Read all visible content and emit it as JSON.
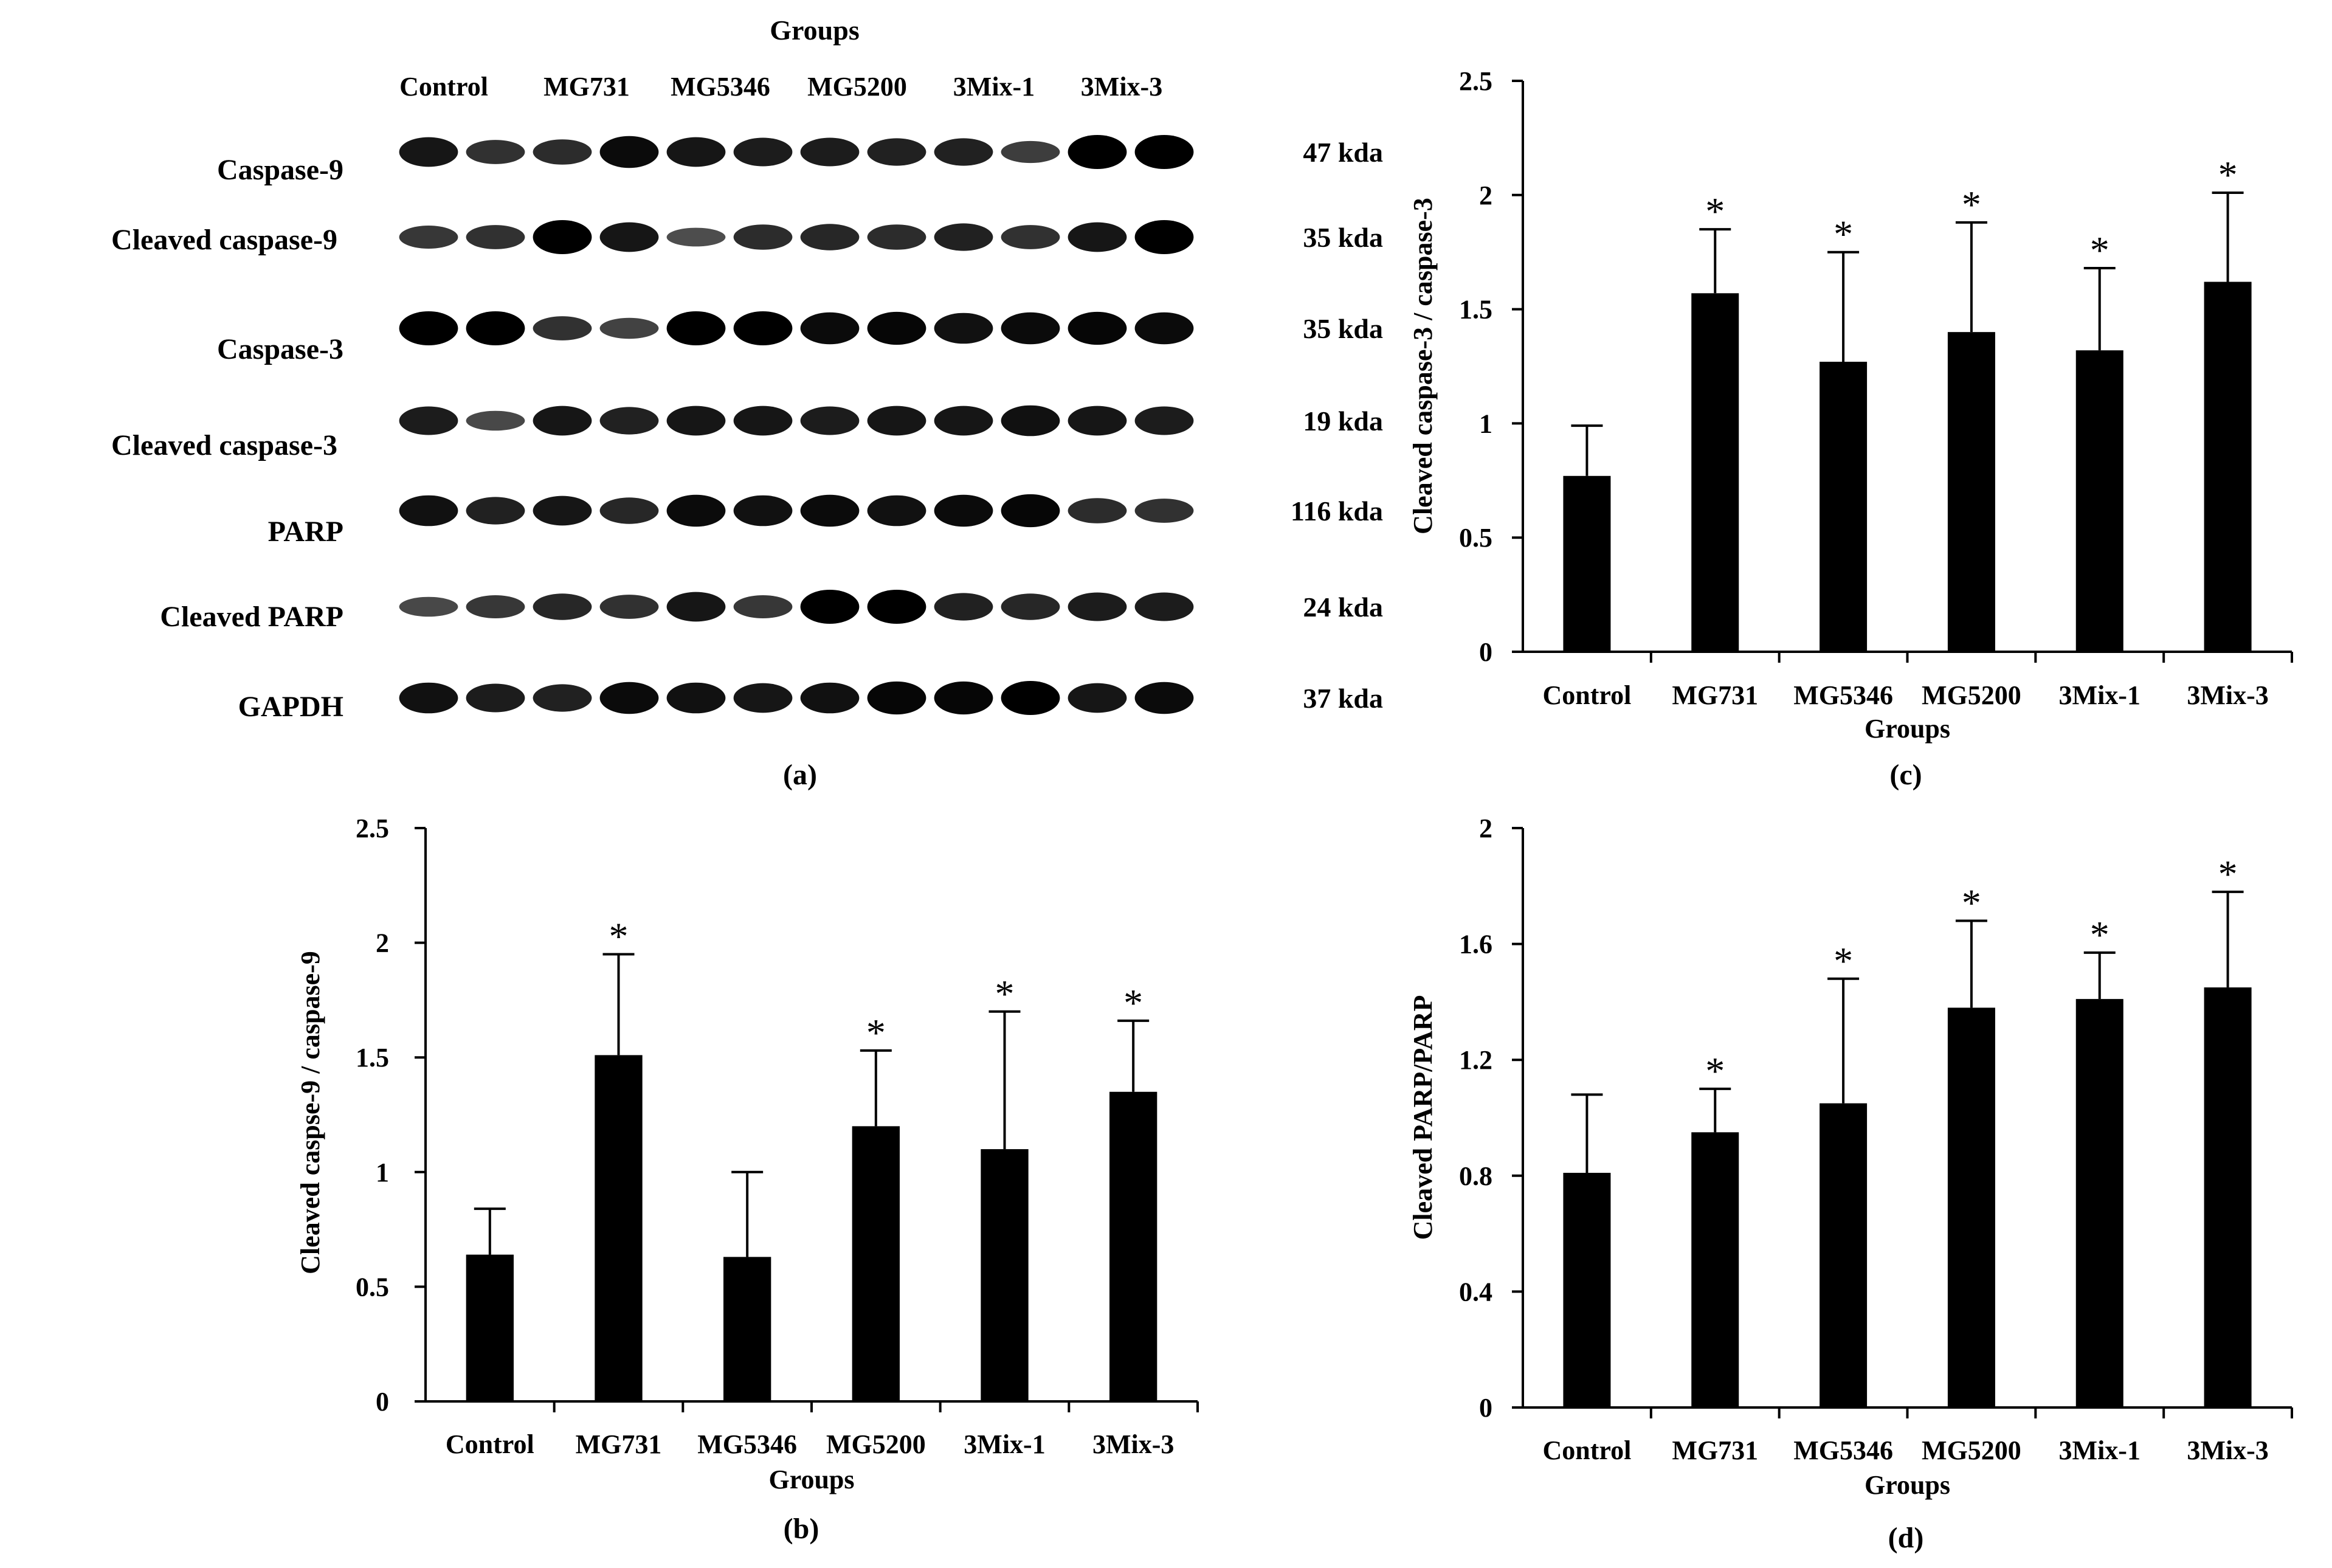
{
  "blot": {
    "header": "Groups",
    "lanes": [
      "Control",
      "MG731",
      "MG5346",
      "MG5200",
      "3Mix-1",
      "3Mix-3"
    ],
    "rows": [
      {
        "protein": "Caspase-9",
        "size": "47  kda",
        "intensity": [
          0.8,
          0.55,
          0.6,
          0.9,
          0.8,
          0.75,
          0.75,
          0.7,
          0.7,
          0.45,
          1.0,
          1.0
        ]
      },
      {
        "protein": "Cleaved caspase-9",
        "size": "35  kda",
        "intensity": [
          0.5,
          0.55,
          1.0,
          0.8,
          0.3,
          0.6,
          0.65,
          0.6,
          0.7,
          0.55,
          0.8,
          1.0
        ]
      },
      {
        "protein": "Caspase-3",
        "size": "35  kda",
        "intensity": [
          1.0,
          1.0,
          0.55,
          0.4,
          1.0,
          1.0,
          0.9,
          0.95,
          0.85,
          0.9,
          0.95,
          0.9
        ]
      },
      {
        "protein": "Cleaved caspase-3",
        "size": "19  kda",
        "intensity": [
          0.75,
          0.35,
          0.8,
          0.7,
          0.8,
          0.8,
          0.75,
          0.8,
          0.8,
          0.85,
          0.8,
          0.75
        ]
      },
      {
        "protein": "PARP",
        "size": "116  kda",
        "intensity": [
          0.85,
          0.7,
          0.8,
          0.65,
          0.9,
          0.85,
          0.9,
          0.85,
          0.9,
          0.95,
          0.6,
          0.55
        ]
      },
      {
        "protein": "Cleaved PARP",
        "size": "24  kda",
        "intensity": [
          0.35,
          0.5,
          0.65,
          0.55,
          0.8,
          0.5,
          1.0,
          1.0,
          0.7,
          0.65,
          0.75,
          0.75
        ]
      },
      {
        "protein": "GAPDH",
        "size": "37  kda",
        "intensity": [
          0.85,
          0.75,
          0.7,
          0.9,
          0.85,
          0.8,
          0.85,
          0.95,
          0.95,
          1.0,
          0.8,
          0.9
        ]
      }
    ],
    "caption": "(a)"
  },
  "chart_data": [
    {
      "panel": "(b)",
      "type": "bar",
      "categories": [
        "Control",
        "MG731",
        "MG5346",
        "MG5200",
        "3Mix-1",
        "3Mix-3"
      ],
      "values": [
        0.64,
        1.51,
        0.63,
        1.2,
        1.1,
        1.35
      ],
      "errors": [
        0.2,
        0.44,
        0.37,
        0.33,
        0.6,
        0.31
      ],
      "significance": [
        "",
        "*",
        "",
        "*",
        "*",
        "*"
      ],
      "xlabel": "Groups",
      "ylabel": "Cleaved caspse-9 / caspase-9",
      "ylim": [
        0,
        2.5
      ],
      "yticks": [
        0,
        0.5,
        1,
        1.5,
        2,
        2.5
      ],
      "ytick_labels": [
        "0",
        "0.5",
        "1",
        "1.5",
        "2",
        "2.5"
      ],
      "caption": "(b)"
    },
    {
      "panel": "(c)",
      "type": "bar",
      "categories": [
        "Control",
        "MG731",
        "MG5346",
        "MG5200",
        "3Mix-1",
        "3Mix-3"
      ],
      "values": [
        0.77,
        1.57,
        1.27,
        1.4,
        1.32,
        1.62
      ],
      "errors": [
        0.22,
        0.28,
        0.48,
        0.48,
        0.36,
        0.39
      ],
      "significance": [
        "",
        "*",
        "*",
        "*",
        "*",
        "*"
      ],
      "xlabel": "Groups",
      "ylabel": "Cleaved caspase-3 / caspase-3",
      "ylim": [
        0,
        2.5
      ],
      "yticks": [
        0,
        0.5,
        1,
        1.5,
        2,
        2.5
      ],
      "ytick_labels": [
        "0",
        "0.5",
        "1",
        "1.5",
        "2",
        "2.5"
      ],
      "caption": "(c)"
    },
    {
      "panel": "(d)",
      "type": "bar",
      "categories": [
        "Control",
        "MG731",
        "MG5346",
        "MG5200",
        "3Mix-1",
        "3Mix-3"
      ],
      "values": [
        0.81,
        0.95,
        1.05,
        1.38,
        1.41,
        1.45
      ],
      "errors": [
        0.27,
        0.15,
        0.43,
        0.3,
        0.16,
        0.33
      ],
      "significance": [
        "",
        "*",
        "*",
        "*",
        "*",
        "*"
      ],
      "xlabel": "Groups",
      "ylabel": "Cleaved PARP/PARP",
      "ylim": [
        0,
        2
      ],
      "yticks": [
        0,
        0.4,
        0.8,
        1.2,
        1.6,
        2
      ],
      "ytick_labels": [
        "0",
        "0.4",
        "0.8",
        "1.2",
        "1.6",
        "2"
      ],
      "caption": "(d)"
    }
  ]
}
